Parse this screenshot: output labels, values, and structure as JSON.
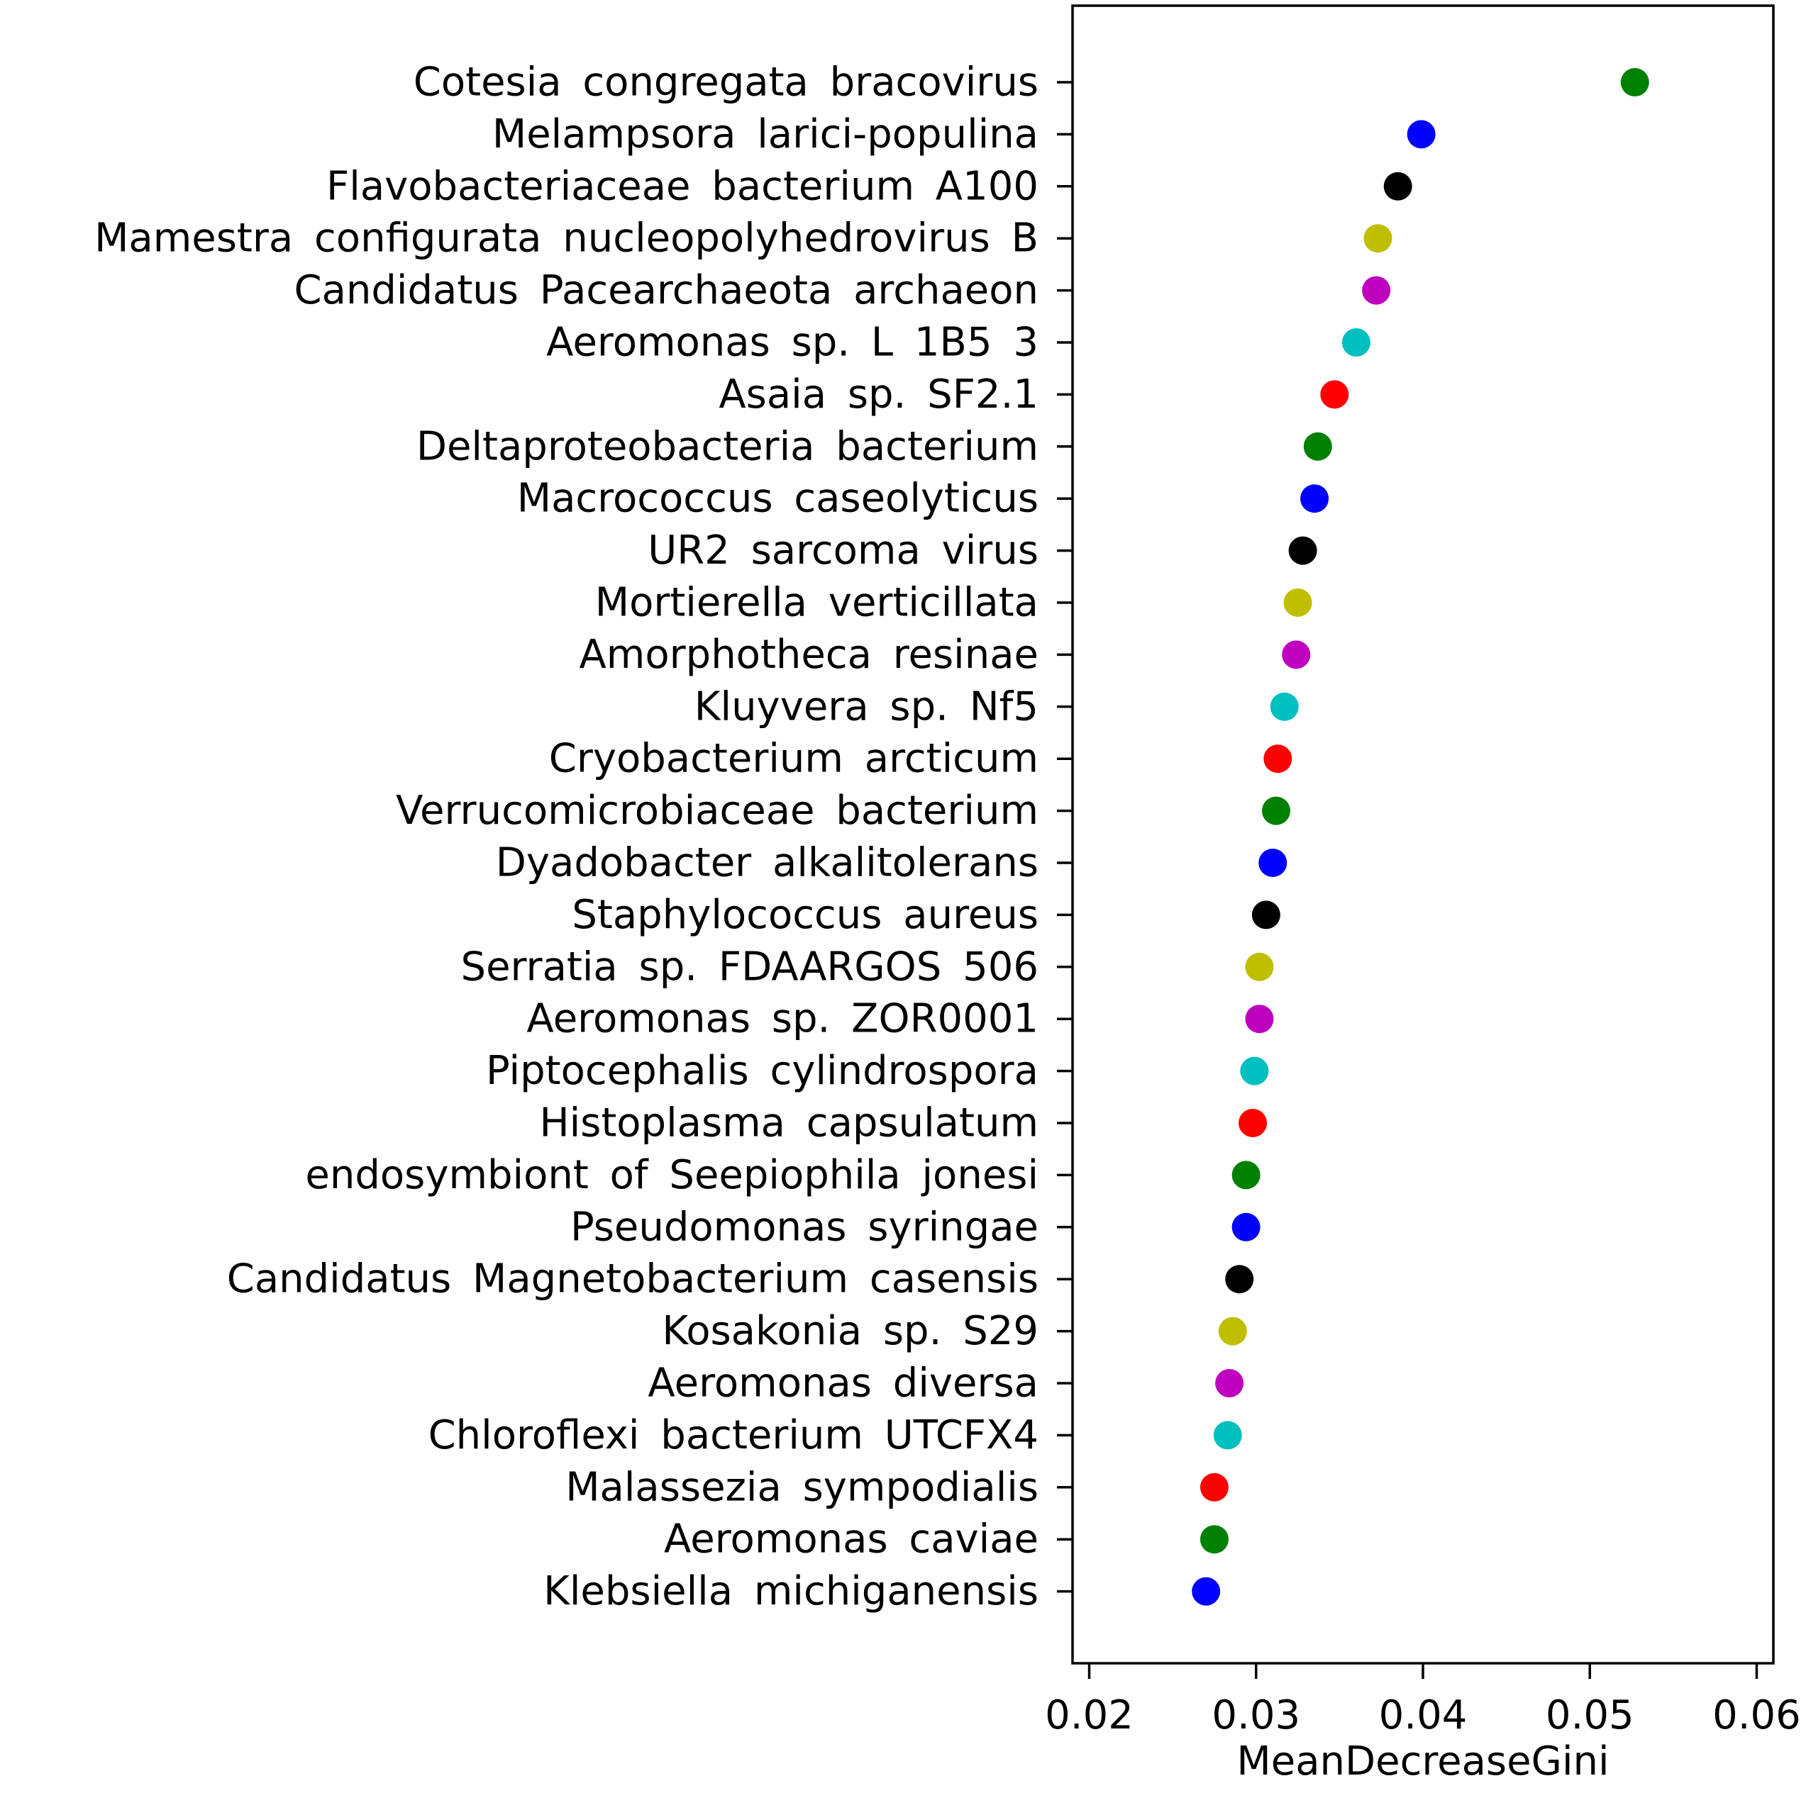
{
  "chart_data": {
    "type": "scatter",
    "title": "",
    "xlabel": "MeanDecreaseGini",
    "ylabel": "",
    "xlim": [
      0.019,
      0.061
    ],
    "xticks": [
      0.02,
      0.03,
      0.04,
      0.05,
      0.06
    ],
    "xtick_labels": [
      "0.02",
      "0.03",
      "0.04",
      "0.05",
      "0.06"
    ],
    "grid": false,
    "legend": "none",
    "points": [
      {
        "label": "Cotesia congregata bracovirus",
        "value": 0.0527,
        "color": "#008000"
      },
      {
        "label": "Melampsora larici-populina",
        "value": 0.0399,
        "color": "#0000ff"
      },
      {
        "label": "Flavobacteriaceae bacterium A100",
        "value": 0.0385,
        "color": "#000000"
      },
      {
        "label": "Mamestra configurata nucleopolyhedrovirus B",
        "value": 0.0373,
        "color": "#bfbf00"
      },
      {
        "label": "Candidatus Pacearchaeota archaeon",
        "value": 0.0372,
        "color": "#bf00bf"
      },
      {
        "label": "Aeromonas sp. L 1B5 3",
        "value": 0.036,
        "color": "#00bfbf"
      },
      {
        "label": "Asaia sp. SF2.1",
        "value": 0.0347,
        "color": "#ff0000"
      },
      {
        "label": "Deltaproteobacteria bacterium",
        "value": 0.0337,
        "color": "#008000"
      },
      {
        "label": "Macrococcus caseolyticus",
        "value": 0.0335,
        "color": "#0000ff"
      },
      {
        "label": "UR2 sarcoma virus",
        "value": 0.0328,
        "color": "#000000"
      },
      {
        "label": "Mortierella verticillata",
        "value": 0.0325,
        "color": "#bfbf00"
      },
      {
        "label": "Amorphotheca resinae",
        "value": 0.0324,
        "color": "#bf00bf"
      },
      {
        "label": "Kluyvera sp. Nf5",
        "value": 0.0317,
        "color": "#00bfbf"
      },
      {
        "label": "Cryobacterium arcticum",
        "value": 0.0313,
        "color": "#ff0000"
      },
      {
        "label": "Verrucomicrobiaceae bacterium",
        "value": 0.0312,
        "color": "#008000"
      },
      {
        "label": "Dyadobacter alkalitolerans",
        "value": 0.031,
        "color": "#0000ff"
      },
      {
        "label": "Staphylococcus aureus",
        "value": 0.0306,
        "color": "#000000"
      },
      {
        "label": "Serratia sp. FDAARGOS 506",
        "value": 0.0302,
        "color": "#bfbf00"
      },
      {
        "label": "Aeromonas sp. ZOR0001",
        "value": 0.0302,
        "color": "#bf00bf"
      },
      {
        "label": "Piptocephalis cylindrospora",
        "value": 0.0299,
        "color": "#00bfbf"
      },
      {
        "label": "Histoplasma capsulatum",
        "value": 0.0298,
        "color": "#ff0000"
      },
      {
        "label": "endosymbiont of Seepiophila jonesi",
        "value": 0.0294,
        "color": "#008000"
      },
      {
        "label": "Pseudomonas syringae",
        "value": 0.0294,
        "color": "#0000ff"
      },
      {
        "label": "Candidatus Magnetobacterium casensis",
        "value": 0.029,
        "color": "#000000"
      },
      {
        "label": "Kosakonia sp. S29",
        "value": 0.0286,
        "color": "#bfbf00"
      },
      {
        "label": "Aeromonas diversa",
        "value": 0.0284,
        "color": "#bf00bf"
      },
      {
        "label": "Chloroflexi bacterium UTCFX4",
        "value": 0.0283,
        "color": "#00bfbf"
      },
      {
        "label": "Malassezia sympodialis",
        "value": 0.0275,
        "color": "#ff0000"
      },
      {
        "label": "Aeromonas caviae",
        "value": 0.0275,
        "color": "#008000"
      },
      {
        "label": "Klebsiella michiganensis",
        "value": 0.027,
        "color": "#0000ff"
      }
    ]
  }
}
